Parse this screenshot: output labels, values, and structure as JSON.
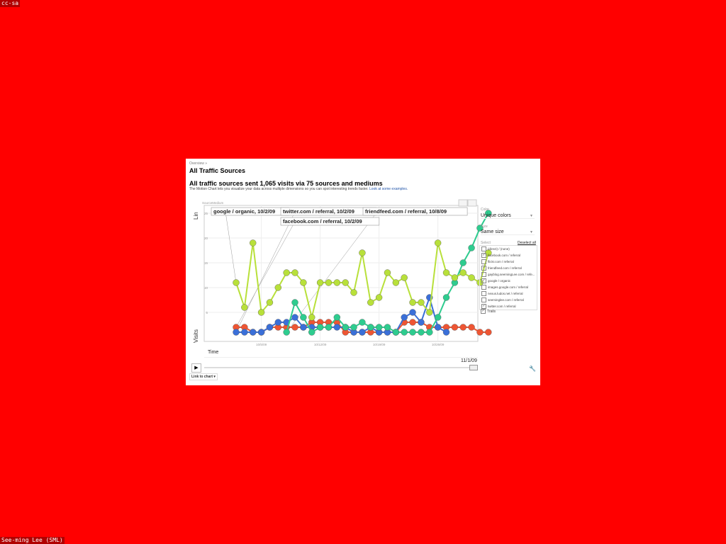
{
  "watermark_top": "cc-sa",
  "watermark_bottom": "See-ming Lee (SML)",
  "breadcrumb": "Overview »",
  "page_title": "All Traffic Sources",
  "headline": "All traffic sources sent 1,065 visits via 75 sources and mediums",
  "description": "The Motion Chart lets you visualize your data across multiple dimensions so you can spot interesting trends faster.",
  "description_link": "Look at some examples.",
  "controls": {
    "color_label": "Color",
    "color_value": "Unique colors",
    "size_label": "Size",
    "size_value": "Same size",
    "select_label": "Select",
    "deselect_all": "Deselect all",
    "items": [
      {
        "label": "(direct) / (none)",
        "checked": false
      },
      {
        "label": "facebook.com / referral",
        "checked": true
      },
      {
        "label": "flickr.com / referral",
        "checked": false
      },
      {
        "label": "friendfeed.com / referral",
        "checked": true
      },
      {
        "label": "gayblog.seemingLee.com / refe...",
        "checked": false
      },
      {
        "label": "google / organic",
        "checked": true
      },
      {
        "label": "images.google.com / referral",
        "checked": false
      },
      {
        "label": "nexus.ludos.net / referral",
        "checked": false
      },
      {
        "label": "seeminglee.com / referral",
        "checked": false
      },
      {
        "label": "twitter.com / referral",
        "checked": true
      }
    ],
    "trails_label": "Trails",
    "trails_checked": true
  },
  "time_label": "Time",
  "current_date": "11/1/09",
  "link_to_chart": "Link to chart",
  "icons": {
    "play": "play-icon",
    "wrench": "wrench-icon",
    "bubble_view": "bubble-chart-icon",
    "bar_view": "bar-chart-icon"
  },
  "chart_data": {
    "type": "line",
    "x_axis_label": "Time",
    "y_axis_label": "Visits",
    "y_scale_label": "Lin",
    "color_dimension_label": "SourceMedium",
    "ylim": [
      0,
      25
    ],
    "y_ticks": [
      "5",
      "10",
      "15",
      "20",
      "25"
    ],
    "x_ticks": [
      "10/5/09",
      "10/12/09",
      "10/19/09",
      "10/26/09"
    ],
    "x_start": "10/2/09",
    "x_end": "11/1/09",
    "grid": true,
    "series": [
      {
        "name": "google / organic",
        "color": "#b8e03a",
        "start": "10/2/09",
        "callout": "google / organic, 10/2/09",
        "values": [
          11,
          6,
          19,
          5,
          7,
          10,
          13,
          13,
          11,
          4,
          11,
          11,
          11,
          11,
          9,
          17,
          7,
          8,
          13,
          11,
          12,
          7,
          7,
          5,
          19,
          13,
          12,
          13,
          12,
          11,
          17
        ]
      },
      {
        "name": "twitter.com / referral",
        "color": "#3a6fd8",
        "start": "10/2/09",
        "callout": "twitter.com / referral, 10/2/09",
        "values": [
          1,
          1,
          1,
          1,
          2,
          3,
          3,
          4,
          2,
          2,
          2,
          2,
          2,
          2,
          1,
          1,
          2,
          1,
          1,
          1,
          4,
          5,
          3,
          8,
          2,
          1
        ]
      },
      {
        "name": "facebook.com / referral",
        "color": "#ee5533",
        "start": "10/2/09",
        "callout": "facebook.com / referral, 10/2/09",
        "values": [
          2,
          2,
          1,
          1,
          2,
          2,
          2,
          2,
          2,
          3,
          3,
          3,
          3,
          1,
          1,
          1,
          1,
          1,
          1,
          1,
          3,
          3,
          3,
          2,
          2,
          2,
          2,
          2,
          2,
          1,
          1
        ]
      },
      {
        "name": "friendfeed.com / referral",
        "color": "#2ecc8f",
        "start": "10/8/09",
        "callout": "friendfeed.com / referral, 10/8/09",
        "values": [
          1,
          7,
          4,
          1,
          2,
          2,
          4,
          2,
          2,
          3,
          2,
          2,
          2,
          1,
          1,
          1,
          1,
          1,
          4,
          8,
          11,
          15,
          18,
          22,
          25
        ]
      }
    ]
  }
}
